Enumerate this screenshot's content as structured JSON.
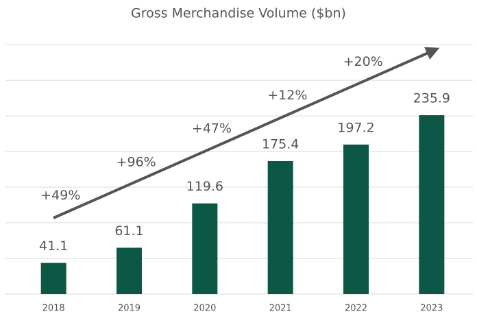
{
  "chart_data": {
    "type": "bar",
    "title": "Gross Merchandise Volume ($bn)",
    "categories": [
      "2018",
      "2019",
      "2020",
      "2021",
      "2022",
      "2023"
    ],
    "values": [
      41.1,
      61.1,
      119.6,
      175.4,
      197.2,
      235.9
    ],
    "color": "#0d5746",
    "ylim": [
      0,
      330
    ],
    "yticks": [
      0,
      47,
      94,
      141,
      188,
      235,
      282,
      329
    ],
    "grid": true,
    "annotations": [
      "+49%",
      "+96%",
      "+47%",
      "+12%",
      "+20%"
    ]
  }
}
